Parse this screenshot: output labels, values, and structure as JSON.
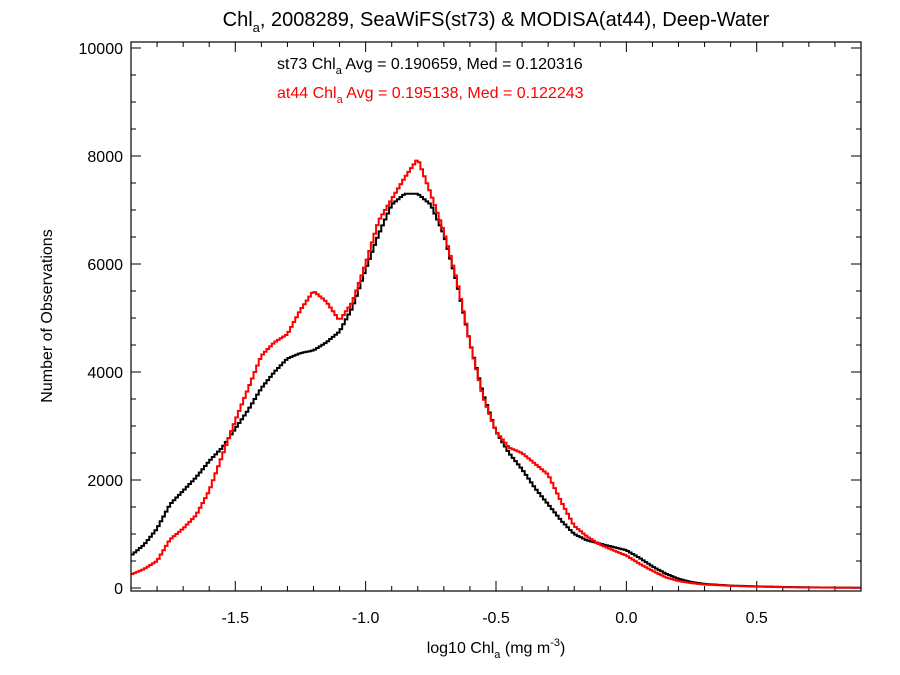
{
  "chart_data": {
    "type": "line",
    "step": true,
    "title": {
      "prefix": "Chl",
      "sub": "a",
      "suffix": ", 2008289, SeaWiFS(st73) & MODISA(at44), Deep-Water"
    },
    "xlabel": {
      "prefix": "log10 Chl",
      "sub": "a",
      "unit_pre": " (mg m",
      "sup": "-3",
      "unit_post": ")"
    },
    "ylabel": "Number of Observations",
    "xlim": [
      -1.9,
      0.9
    ],
    "ylim": [
      0,
      10000
    ],
    "xticks": [
      -1.5,
      -1.0,
      -0.5,
      0.0,
      0.5
    ],
    "xtick_labels": [
      "-1.5",
      "-1.0",
      "-0.5",
      "0.0",
      "0.5"
    ],
    "yticks": [
      0,
      2000,
      4000,
      6000,
      8000,
      10000
    ],
    "ytick_labels": [
      "0",
      "2000",
      "4000",
      "6000",
      "8000",
      "10000"
    ],
    "grid": false,
    "series": [
      {
        "name": "st73",
        "color": "#000000",
        "annotation": {
          "pre": "st73 Chl",
          "sub": "a",
          "post": " Avg = 0.190659, Med = 0.120316"
        },
        "points": [
          [
            -1.9,
            600
          ],
          [
            -1.85,
            800
          ],
          [
            -1.8,
            1100
          ],
          [
            -1.75,
            1550
          ],
          [
            -1.7,
            1800
          ],
          [
            -1.65,
            2050
          ],
          [
            -1.6,
            2350
          ],
          [
            -1.55,
            2600
          ],
          [
            -1.5,
            2950
          ],
          [
            -1.45,
            3300
          ],
          [
            -1.4,
            3700
          ],
          [
            -1.35,
            4000
          ],
          [
            -1.3,
            4250
          ],
          [
            -1.25,
            4350
          ],
          [
            -1.2,
            4400
          ],
          [
            -1.15,
            4550
          ],
          [
            -1.1,
            4750
          ],
          [
            -1.05,
            5200
          ],
          [
            -1.0,
            5900
          ],
          [
            -0.95,
            6550
          ],
          [
            -0.9,
            7100
          ],
          [
            -0.85,
            7300
          ],
          [
            -0.8,
            7300
          ],
          [
            -0.75,
            7100
          ],
          [
            -0.7,
            6550
          ],
          [
            -0.65,
            5650
          ],
          [
            -0.6,
            4550
          ],
          [
            -0.55,
            3600
          ],
          [
            -0.5,
            2900
          ],
          [
            -0.45,
            2500
          ],
          [
            -0.4,
            2200
          ],
          [
            -0.35,
            1850
          ],
          [
            -0.3,
            1550
          ],
          [
            -0.25,
            1250
          ],
          [
            -0.2,
            1000
          ],
          [
            -0.15,
            880
          ],
          [
            -0.1,
            820
          ],
          [
            -0.05,
            760
          ],
          [
            0.0,
            700
          ],
          [
            0.05,
            560
          ],
          [
            0.1,
            400
          ],
          [
            0.15,
            270
          ],
          [
            0.2,
            170
          ],
          [
            0.25,
            110
          ],
          [
            0.3,
            75
          ],
          [
            0.4,
            45
          ],
          [
            0.5,
            30
          ],
          [
            0.6,
            20
          ],
          [
            0.7,
            12
          ],
          [
            0.8,
            8
          ],
          [
            0.9,
            5
          ]
        ]
      },
      {
        "name": "at44",
        "color": "#ff0000",
        "annotation": {
          "pre": "at44 Chl",
          "sub": "a",
          "post": " Avg = 0.195138, Med = 0.122243"
        },
        "points": [
          [
            -1.9,
            250
          ],
          [
            -1.85,
            350
          ],
          [
            -1.8,
            500
          ],
          [
            -1.75,
            900
          ],
          [
            -1.7,
            1100
          ],
          [
            -1.65,
            1350
          ],
          [
            -1.6,
            1800
          ],
          [
            -1.55,
            2450
          ],
          [
            -1.5,
            3100
          ],
          [
            -1.45,
            3700
          ],
          [
            -1.4,
            4300
          ],
          [
            -1.35,
            4550
          ],
          [
            -1.3,
            4700
          ],
          [
            -1.25,
            5150
          ],
          [
            -1.2,
            5500
          ],
          [
            -1.15,
            5300
          ],
          [
            -1.1,
            4950
          ],
          [
            -1.05,
            5300
          ],
          [
            -1.0,
            6000
          ],
          [
            -0.95,
            6800
          ],
          [
            -0.9,
            7200
          ],
          [
            -0.85,
            7600
          ],
          [
            -0.8,
            7950
          ],
          [
            -0.75,
            7300
          ],
          [
            -0.7,
            6600
          ],
          [
            -0.65,
            5700
          ],
          [
            -0.6,
            4550
          ],
          [
            -0.55,
            3550
          ],
          [
            -0.5,
            2900
          ],
          [
            -0.45,
            2600
          ],
          [
            -0.4,
            2500
          ],
          [
            -0.35,
            2300
          ],
          [
            -0.3,
            2100
          ],
          [
            -0.25,
            1600
          ],
          [
            -0.2,
            1150
          ],
          [
            -0.15,
            950
          ],
          [
            -0.1,
            800
          ],
          [
            -0.05,
            700
          ],
          [
            0.0,
            600
          ],
          [
            0.05,
            450
          ],
          [
            0.1,
            320
          ],
          [
            0.15,
            200
          ],
          [
            0.2,
            130
          ],
          [
            0.25,
            90
          ],
          [
            0.3,
            65
          ],
          [
            0.4,
            40
          ],
          [
            0.5,
            25
          ],
          [
            0.6,
            15
          ],
          [
            0.7,
            10
          ],
          [
            0.8,
            6
          ],
          [
            0.9,
            4
          ]
        ]
      }
    ]
  }
}
